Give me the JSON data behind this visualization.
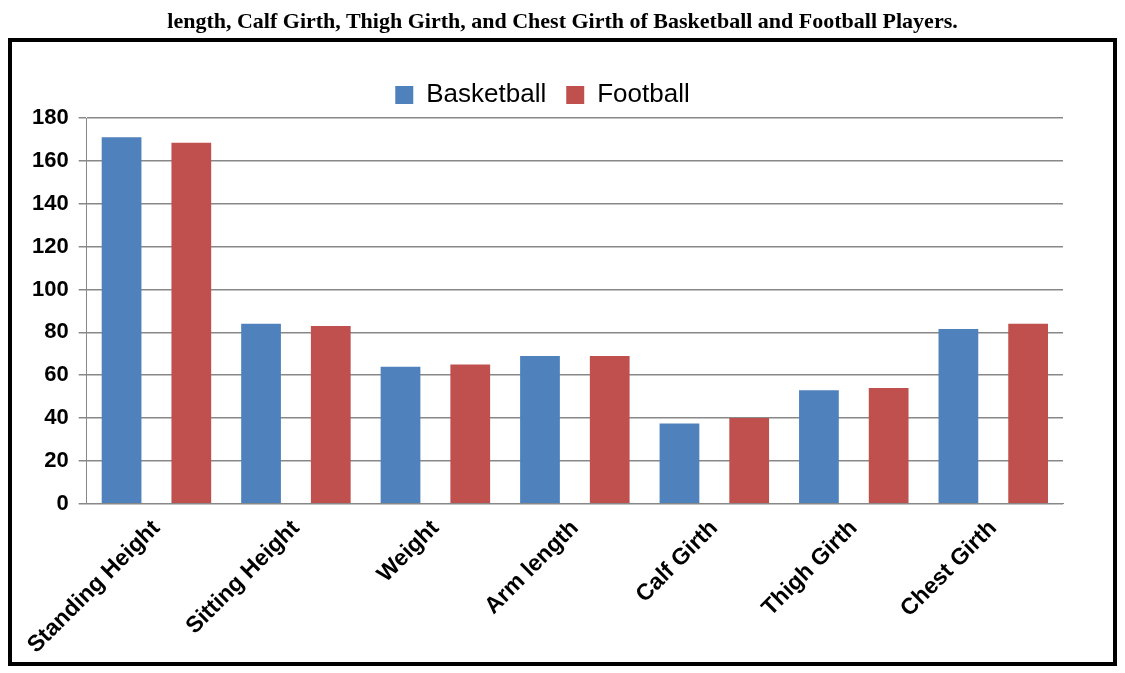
{
  "chart_data": {
    "type": "bar",
    "title": "length, Calf Girth, Thigh Girth, and Chest Girth of Basketball and Football Players.",
    "categories": [
      "Standing Height",
      "Sitting Height",
      "Weight",
      "Arm length",
      "Calf Girth",
      "Thigh Girth",
      "Chest Girth"
    ],
    "series": [
      {
        "name": "Basketball",
        "color": "#4f81bd",
        "values": [
          171,
          84,
          64,
          69,
          37.5,
          53,
          81.5
        ]
      },
      {
        "name": "Football",
        "color": "#c0504d",
        "values": [
          168.5,
          83,
          65,
          69,
          40,
          54,
          84
        ]
      }
    ],
    "ylim": [
      0,
      180
    ],
    "yticks": [
      0,
      20,
      40,
      60,
      80,
      100,
      120,
      140,
      160,
      180
    ],
    "grid": "y",
    "legend": "top"
  }
}
